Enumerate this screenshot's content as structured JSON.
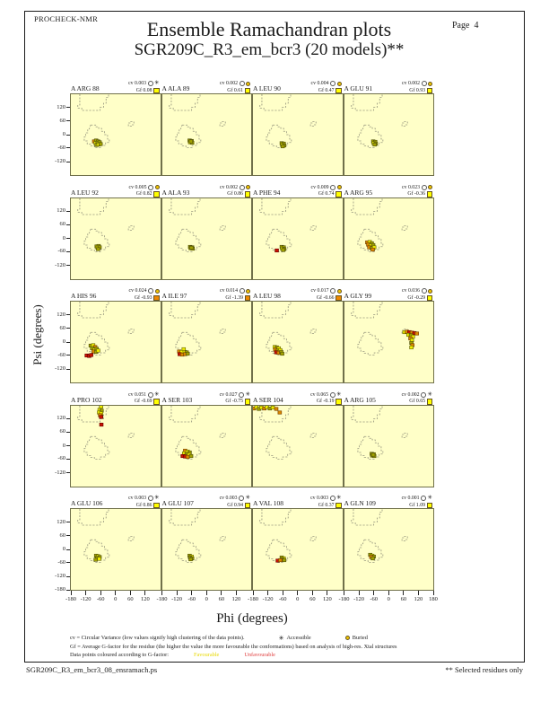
{
  "header": {
    "app": "PROCHECK-NMR",
    "title": "Ensemble Ramachandran plots",
    "subtitle": "SGR209C_R3_em_bcr3 (20 models)**",
    "page_label": "Page",
    "page_number": "4"
  },
  "axes": {
    "x_label": "Phi (degrees)",
    "y_label": "Psi (degrees)",
    "x_ticks": [
      -180,
      -120,
      -60,
      0,
      60,
      120
    ],
    "x_end_tick": 180,
    "y_ticks": [
      120,
      60,
      0,
      -60,
      -120
    ],
    "y_end_tick": -180
  },
  "stats_keys": {
    "cv": "cv",
    "gf": "Gf"
  },
  "footnotes": {
    "cv_line": "cv = Circular Variance (low values signify high clustering of the data points).",
    "accessible_label": "Accessible",
    "buried_label": "Buried",
    "gf_line": "Gf = Average G-factor for the residue (the higher the value the more favourable the conformations) based on analysis of high-res. Xtal structures",
    "colour_line": "Data points coloured according to G-factor:",
    "favourable_label": "Favourable",
    "unfavourable_label": "Unfavourable"
  },
  "footer": {
    "left": "SGR209C_R3_em_bcr3_08_ensramach.ps",
    "right": "** Selected residues only"
  },
  "colors": {
    "plot_bg": "#FFFFC8",
    "point_yellow": "#F2F200",
    "point_olive": "#A2A200",
    "point_orange": "#DD8800",
    "point_red": "#CC1100",
    "gf_badge_yellow": "#FFFF00",
    "gf_badge_orange": "#EE8800",
    "favourable_text": "#E8D800",
    "unfavourable_text": "#E04040",
    "region_outline": "#9A9A80"
  },
  "chart_data": {
    "type": "scatter",
    "title": "Ensemble Ramachandran plots",
    "subtitle": "SGR209C_R3_em_bcr3 (20 models)**",
    "xlabel": "Phi (degrees)",
    "ylabel": "Psi (degrees)",
    "xlim": [
      -180,
      180
    ],
    "ylim": [
      -180,
      180
    ],
    "grid_rows": 5,
    "grid_cols": 4,
    "point_color_legend": {
      "Y": "favourable (bright yellow)",
      "O": "favourable (olive)",
      "N": "less favourable (orange)",
      "R": "unfavourable (red)"
    },
    "residues": [
      {
        "name": "A ARG 88",
        "cv": "0.003",
        "gf": "0.08",
        "accessibility": "accessible",
        "gf_badge": "yellow",
        "points": [
          [
            -86,
            -30,
            "N"
          ],
          [
            -78,
            -26,
            "O"
          ],
          [
            -70,
            -30,
            "O"
          ],
          [
            -80,
            -38,
            "Y"
          ],
          [
            -72,
            -36,
            "O"
          ],
          [
            -64,
            -34,
            "O"
          ],
          [
            -76,
            -46,
            "O"
          ],
          [
            -68,
            -44,
            "Y"
          ],
          [
            -60,
            -42,
            "O"
          ]
        ]
      },
      {
        "name": "A ALA 89",
        "cv": "0.002",
        "gf": "0.61",
        "accessibility": "buried",
        "gf_badge": "yellow",
        "points": [
          [
            -70,
            -26,
            "O"
          ],
          [
            -62,
            -28,
            "O"
          ],
          [
            -68,
            -34,
            "Y"
          ],
          [
            -60,
            -36,
            "O"
          ],
          [
            -65,
            -30,
            "O"
          ]
        ]
      },
      {
        "name": "A LEU 90",
        "cv": "0.004",
        "gf": "0.47",
        "accessibility": "buried",
        "gf_badge": "yellow",
        "points": [
          [
            -64,
            -38,
            "O"
          ],
          [
            -56,
            -40,
            "O"
          ],
          [
            -62,
            -46,
            "Y"
          ],
          [
            -54,
            -48,
            "O"
          ],
          [
            -60,
            -52,
            "O"
          ]
        ]
      },
      {
        "name": "A GLU 91",
        "cv": "0.002",
        "gf": "0.93",
        "accessibility": "buried",
        "gf_badge": "yellow",
        "points": [
          [
            -64,
            -30,
            "O"
          ],
          [
            -56,
            -32,
            "O"
          ],
          [
            -62,
            -38,
            "Y"
          ],
          [
            -54,
            -40,
            "O"
          ],
          [
            -58,
            -44,
            "O"
          ]
        ]
      },
      {
        "name": "A LEU 92",
        "cv": "0.005",
        "gf": "0.82",
        "accessibility": "buried",
        "gf_badge": "yellow",
        "points": [
          [
            -76,
            -34,
            "O"
          ],
          [
            -68,
            -32,
            "O"
          ],
          [
            -72,
            -40,
            "Y"
          ],
          [
            -64,
            -38,
            "O"
          ],
          [
            -70,
            -46,
            "O"
          ]
        ]
      },
      {
        "name": "A ALA 93",
        "cv": "0.002",
        "gf": "0.86",
        "accessibility": "buried",
        "gf_badge": "yellow",
        "points": [
          [
            -68,
            -36,
            "O"
          ],
          [
            -60,
            -38,
            "O"
          ],
          [
            -66,
            -42,
            "Y"
          ],
          [
            -58,
            -44,
            "O"
          ],
          [
            -63,
            -40,
            "O"
          ]
        ]
      },
      {
        "name": "A PHE 94",
        "cv": "0.009",
        "gf": "0.74",
        "accessibility": "buried",
        "gf_badge": "yellow",
        "points": [
          [
            -84,
            -52,
            "R"
          ],
          [
            -64,
            -36,
            "O"
          ],
          [
            -56,
            -38,
            "O"
          ],
          [
            -62,
            -44,
            "Y"
          ],
          [
            -54,
            -46,
            "O"
          ],
          [
            -58,
            -50,
            "O"
          ]
        ]
      },
      {
        "name": "A ARG 95",
        "cv": "0.023",
        "gf": "-0.36",
        "accessibility": "buried",
        "gf_badge": "yellow",
        "points": [
          [
            -88,
            -16,
            "N"
          ],
          [
            -78,
            -14,
            "Y"
          ],
          [
            -70,
            -20,
            "O"
          ],
          [
            -84,
            -26,
            "N"
          ],
          [
            -74,
            -30,
            "Y"
          ],
          [
            -64,
            -28,
            "O"
          ],
          [
            -80,
            -38,
            "N"
          ],
          [
            -70,
            -42,
            "O"
          ],
          [
            -60,
            -38,
            "Y"
          ],
          [
            -66,
            -48,
            "N"
          ]
        ]
      },
      {
        "name": "A HIS 96",
        "cv": "0.024",
        "gf": "-0.93",
        "accessibility": "buried",
        "gf_badge": "orange",
        "points": [
          [
            -100,
            -16,
            "O"
          ],
          [
            -90,
            -14,
            "Y"
          ],
          [
            -82,
            -22,
            "N"
          ],
          [
            -94,
            -28,
            "O"
          ],
          [
            -84,
            -34,
            "Y"
          ],
          [
            -76,
            -30,
            "O"
          ],
          [
            -88,
            -42,
            "N"
          ],
          [
            -78,
            -44,
            "O"
          ],
          [
            -70,
            -38,
            "Y"
          ],
          [
            -116,
            -60,
            "R"
          ],
          [
            -106,
            -62,
            "R"
          ],
          [
            -98,
            -58,
            "R"
          ]
        ]
      },
      {
        "name": "A ILE 97",
        "cv": "0.014",
        "gf": "-1.39",
        "accessibility": "buried",
        "gf_badge": "orange",
        "points": [
          [
            -94,
            -32,
            "Y"
          ],
          [
            -112,
            -42,
            "N"
          ],
          [
            -102,
            -44,
            "Y"
          ],
          [
            -110,
            -54,
            "R"
          ],
          [
            -100,
            -56,
            "N"
          ],
          [
            -90,
            -44,
            "Y"
          ],
          [
            -82,
            -46,
            "O"
          ],
          [
            -88,
            -54,
            "N"
          ],
          [
            -78,
            -52,
            "O"
          ]
        ]
      },
      {
        "name": "A LEU 98",
        "cv": "0.017",
        "gf": "-0.66",
        "accessibility": "buried",
        "gf_badge": "orange",
        "points": [
          [
            -92,
            -22,
            "Y"
          ],
          [
            -84,
            -24,
            "O"
          ],
          [
            -76,
            -28,
            "Y"
          ],
          [
            -90,
            -34,
            "N"
          ],
          [
            -80,
            -38,
            "O"
          ],
          [
            -70,
            -36,
            "Y"
          ],
          [
            -86,
            -46,
            "R"
          ],
          [
            -76,
            -48,
            "N"
          ],
          [
            -66,
            -44,
            "O"
          ],
          [
            -62,
            -52,
            "O"
          ]
        ]
      },
      {
        "name": "A GLY 99",
        "cv": "0.036",
        "gf": "-0.29",
        "accessibility": "buried",
        "gf_badge": "yellow",
        "points": [
          [
            62,
            44,
            "Y"
          ],
          [
            72,
            46,
            "N"
          ],
          [
            82,
            44,
            "R"
          ],
          [
            92,
            42,
            "N"
          ],
          [
            102,
            40,
            "R"
          ],
          [
            112,
            38,
            "N"
          ],
          [
            78,
            32,
            "Y"
          ],
          [
            88,
            30,
            "O"
          ],
          [
            96,
            24,
            "Y"
          ],
          [
            86,
            16,
            "N"
          ],
          [
            92,
            8,
            "Y"
          ],
          [
            90,
            -4,
            "O"
          ],
          [
            94,
            -14,
            "N"
          ],
          [
            90,
            -24,
            "Y"
          ]
        ]
      },
      {
        "name": "A PRO 102",
        "cv": "0.051",
        "gf": "-0.69",
        "accessibility": "accessible",
        "gf_badge": "yellow",
        "points": [
          [
            -58,
            176,
            "Y"
          ],
          [
            -64,
            162,
            "Y"
          ],
          [
            -56,
            158,
            "O"
          ],
          [
            -66,
            150,
            "Y"
          ],
          [
            -58,
            146,
            "Y"
          ],
          [
            -62,
            138,
            "N"
          ],
          [
            -58,
            130,
            "R"
          ],
          [
            -57,
            96,
            "R"
          ]
        ]
      },
      {
        "name": "A SER 103",
        "cv": "0.027",
        "gf": "-0.75",
        "accessibility": "accessible",
        "gf_badge": "yellow",
        "points": [
          [
            -88,
            -20,
            "N"
          ],
          [
            -78,
            -24,
            "Y"
          ],
          [
            -70,
            -28,
            "O"
          ],
          [
            -92,
            -32,
            "Y"
          ],
          [
            -82,
            -36,
            "O"
          ],
          [
            -72,
            -38,
            "Y"
          ],
          [
            -98,
            -44,
            "R"
          ],
          [
            -88,
            -46,
            "R"
          ],
          [
            -78,
            -48,
            "N"
          ],
          [
            -64,
            -44,
            "O"
          ]
        ]
      },
      {
        "name": "A SER 104",
        "cv": "0.065",
        "gf": "-0.19",
        "accessibility": "accessible",
        "gf_badge": "yellow",
        "points": [
          [
            -176,
            168,
            "N"
          ],
          [
            -166,
            174,
            "Y"
          ],
          [
            -156,
            166,
            "O"
          ],
          [
            -146,
            172,
            "Y"
          ],
          [
            -134,
            168,
            "N"
          ],
          [
            -124,
            174,
            "Y"
          ],
          [
            -112,
            168,
            "O"
          ],
          [
            -100,
            172,
            "Y"
          ],
          [
            -86,
            166,
            "N"
          ],
          [
            -72,
            150,
            "N"
          ]
        ]
      },
      {
        "name": "A ARG 105",
        "cv": "0.002",
        "gf": "0.65",
        "accessibility": "accessible",
        "gf_badge": "yellow",
        "points": [
          [
            -70,
            -34,
            "O"
          ],
          [
            -62,
            -36,
            "Y"
          ],
          [
            -68,
            -42,
            "O"
          ],
          [
            -60,
            -44,
            "O"
          ],
          [
            -64,
            -38,
            "O"
          ]
        ]
      },
      {
        "name": "A GLU 106",
        "cv": "0.003",
        "gf": "0.86",
        "accessibility": "accessible",
        "gf_badge": "yellow",
        "points": [
          [
            -78,
            -28,
            "O"
          ],
          [
            -70,
            -30,
            "Y"
          ],
          [
            -64,
            -34,
            "O"
          ],
          [
            -74,
            -38,
            "O"
          ],
          [
            -66,
            -42,
            "Y"
          ],
          [
            -80,
            -46,
            "O"
          ]
        ]
      },
      {
        "name": "A GLU 107",
        "cv": "0.003",
        "gf": "0.94",
        "accessibility": "accessible",
        "gf_badge": "yellow",
        "points": [
          [
            -70,
            -28,
            "O"
          ],
          [
            -62,
            -32,
            "Y"
          ],
          [
            -68,
            -36,
            "O"
          ],
          [
            -60,
            -40,
            "O"
          ],
          [
            -66,
            -44,
            "O"
          ]
        ]
      },
      {
        "name": "A VAL 108",
        "cv": "0.003",
        "gf": "0.37",
        "accessibility": "accessible",
        "gf_badge": "yellow",
        "points": [
          [
            -80,
            -50,
            "R"
          ],
          [
            -64,
            -36,
            "O"
          ],
          [
            -56,
            -40,
            "Y"
          ],
          [
            -62,
            -44,
            "O"
          ],
          [
            -54,
            -48,
            "O"
          ],
          [
            -70,
            -48,
            "N"
          ]
        ]
      },
      {
        "name": "A GLN 109",
        "cv": "0.001",
        "gf": "1.09",
        "accessibility": "accessible",
        "gf_badge": "yellow",
        "points": [
          [
            -76,
            -24,
            "O"
          ],
          [
            -68,
            -28,
            "Y"
          ],
          [
            -62,
            -32,
            "O"
          ],
          [
            -72,
            -34,
            "N"
          ],
          [
            -66,
            -40,
            "O"
          ]
        ]
      }
    ]
  }
}
